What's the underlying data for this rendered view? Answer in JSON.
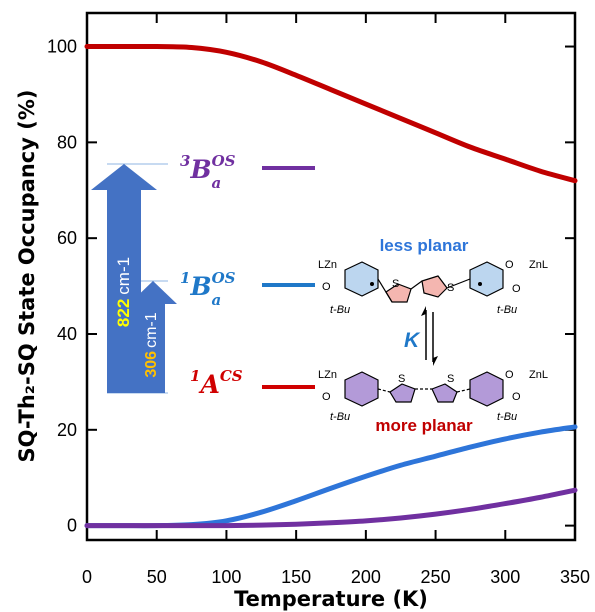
{
  "chart_data": {
    "type": "line",
    "xlabel": "Temperature (K)",
    "ylabel": "SQ-Th₂-SQ State Occupancy (%)",
    "xlim": [
      0,
      350
    ],
    "ylim": [
      -3,
      107
    ],
    "xticks": [
      0,
      50,
      100,
      150,
      200,
      250,
      300,
      350
    ],
    "yticks": [
      0,
      20,
      40,
      60,
      80,
      100
    ],
    "grid": false,
    "series": [
      {
        "name": "¹A^CS",
        "color": "#c00000",
        "x": [
          0,
          25,
          50,
          75,
          100,
          125,
          150,
          175,
          200,
          225,
          250,
          275,
          300,
          325,
          350
        ],
        "y": [
          100,
          100,
          100,
          99.8,
          98.8,
          96.8,
          94,
          91,
          88,
          85,
          82,
          79,
          76.5,
          74,
          72
        ]
      },
      {
        "name": "¹B_a^OS",
        "color": "#2e75d9",
        "x": [
          0,
          25,
          50,
          75,
          100,
          125,
          150,
          175,
          200,
          225,
          250,
          275,
          300,
          325,
          350
        ],
        "y": [
          0,
          0,
          0,
          0.2,
          1,
          2.8,
          5.2,
          7.8,
          10.3,
          12.6,
          14.5,
          16.4,
          18.1,
          19.5,
          20.6
        ]
      },
      {
        "name": "³B_a^OS",
        "color": "#7030a0",
        "x": [
          0,
          25,
          50,
          75,
          100,
          125,
          150,
          175,
          200,
          225,
          250,
          275,
          300,
          325,
          350
        ],
        "y": [
          0,
          0,
          0,
          0,
          0,
          0.1,
          0.3,
          0.6,
          1.0,
          1.6,
          2.4,
          3.4,
          4.6,
          5.9,
          7.4
        ]
      }
    ],
    "annotations": {
      "levels": [
        {
          "label": "³B",
          "sub": "a",
          "sup": "OS",
          "color": "#7030a0"
        },
        {
          "label": "¹B",
          "sub": "a",
          "sup": "OS",
          "color": "#1f78c8"
        },
        {
          "label": "¹A",
          "sup": "CS",
          "color": "#d00000"
        }
      ],
      "arrows": [
        {
          "value": "822",
          "unit": "cm-1",
          "color": "#4472c4",
          "value_color": "#ffff00"
        },
        {
          "value": "306",
          "unit": "cm-1",
          "color": "#4472c4",
          "value_color": "#ffc000"
        }
      ],
      "structure_labels": {
        "top": "less planar",
        "bottom": "more planar",
        "equilibrium": "K",
        "lzn": "LZn",
        "znl": "ZnL",
        "tbu": "t-Bu",
        "o": "O",
        "s": "S"
      }
    }
  }
}
